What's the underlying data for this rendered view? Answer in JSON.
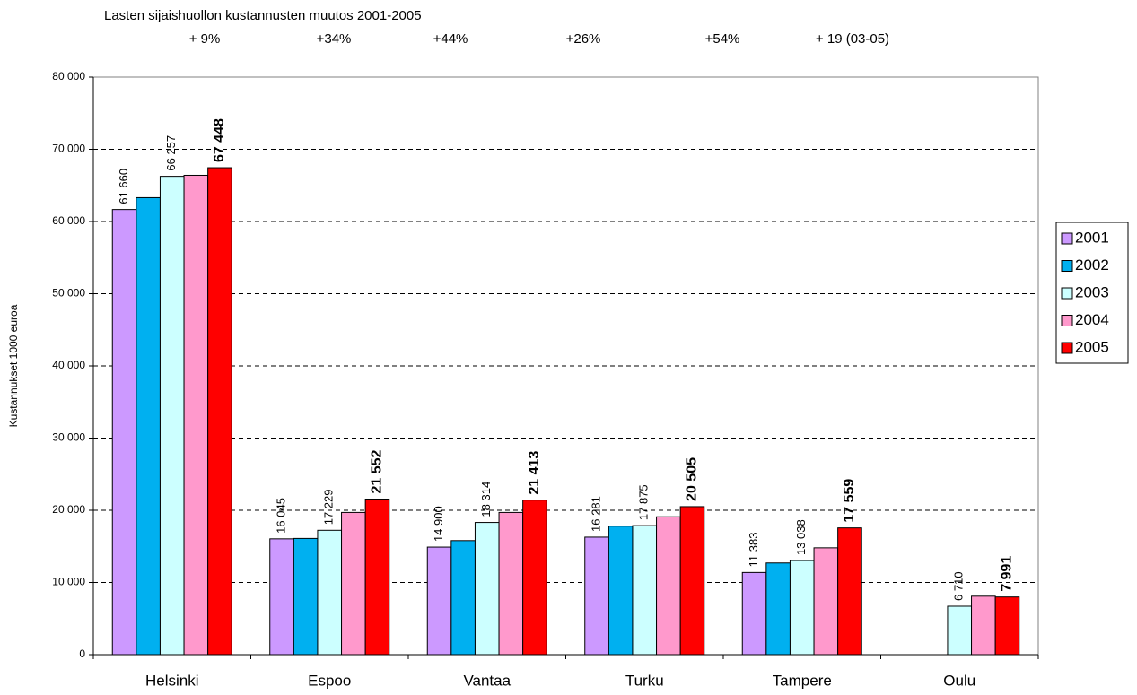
{
  "chart_data": {
    "type": "bar",
    "title": "Lasten sijaishuollon kustannusten  muutos  2001-2005",
    "annotations": [
      "+ 9%",
      "+34%",
      "+44%",
      "+26%",
      "+54%",
      "+  19 (03-05)"
    ],
    "y_label": "Kustannukset 1000 euroa",
    "categories": [
      "Helsinki",
      "Espoo",
      "Vantaa",
      "Turku",
      "Tampere",
      "Oulu"
    ],
    "series": [
      {
        "name": "2001",
        "color": "#cc99ff",
        "values": [
          61660,
          16045,
          14900,
          16281,
          11383,
          null
        ],
        "value_labels": [
          "61 660",
          "16 045",
          "14 900",
          "16 281",
          "11 383",
          null
        ]
      },
      {
        "name": "2002",
        "color": "#00b0f0",
        "values": [
          63300,
          16100,
          15800,
          17800,
          12700,
          null
        ]
      },
      {
        "name": "2003",
        "color": "#ccffff",
        "values": [
          66257,
          17229,
          18314,
          17875,
          13038,
          6710
        ],
        "value_labels": [
          "66 257",
          "17 229",
          "18 314",
          "17 875",
          "13 038",
          "6 710"
        ]
      },
      {
        "name": "2004",
        "color": "#ff99cc",
        "values": [
          66400,
          19700,
          19700,
          19100,
          14800,
          8100
        ]
      },
      {
        "name": "2005",
        "color": "#ff0000",
        "values": [
          67448,
          21552,
          21413,
          20505,
          17559,
          7991
        ],
        "value_labels": [
          "67 448",
          "21 552",
          "21 413",
          "20 505",
          "17 559",
          "7 991"
        ]
      }
    ],
    "ylim": [
      0,
      80000
    ],
    "yticks": [
      {
        "value": 0,
        "label": "0"
      },
      {
        "value": 10000,
        "label": "10 000"
      },
      {
        "value": 20000,
        "label": "20 000"
      },
      {
        "value": 30000,
        "label": "30 000"
      },
      {
        "value": 40000,
        "label": "40 000"
      },
      {
        "value": 50000,
        "label": "50 000"
      },
      {
        "value": 60000,
        "label": "60 000"
      },
      {
        "value": 70000,
        "label": "70 000"
      },
      {
        "value": 80000,
        "label": "80 000"
      }
    ],
    "grid": true,
    "legend": "right"
  }
}
